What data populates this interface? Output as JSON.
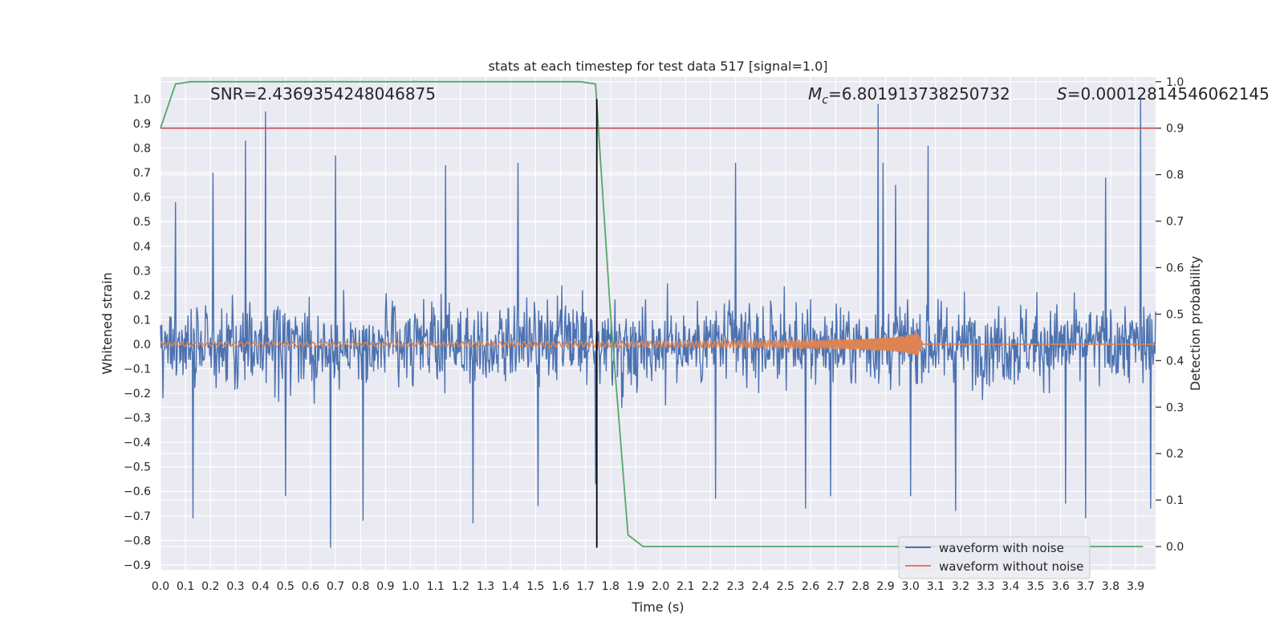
{
  "chart_data": {
    "type": "line",
    "title": "stats at each timestep for test data 517 [signal=1.0]",
    "xlabel": "Time (s)",
    "ylabel_left": "Whitened strain",
    "ylabel_right": "Detection probability",
    "annotations": {
      "snr": "SNR=2.4369354248046875",
      "mc_symbol": "M",
      "mc_subscript": "c",
      "mc_value": "=6.801913738250732",
      "s_symbol": "S",
      "s_value": "=0.00012814546062145"
    },
    "xlim": [
      0.0,
      3.98
    ],
    "ylim_left": [
      -0.92,
      1.09
    ],
    "ylim_right": [
      -0.05,
      1.01
    ],
    "x_ticks": [
      "0.0",
      "0.1",
      "0.2",
      "0.3",
      "0.4",
      "0.5",
      "0.6",
      "0.7",
      "0.8",
      "0.9",
      "1.0",
      "1.1",
      "1.2",
      "1.3",
      "1.4",
      "1.5",
      "1.6",
      "1.7",
      "1.8",
      "1.9",
      "2.0",
      "2.1",
      "2.2",
      "2.3",
      "2.4",
      "2.5",
      "2.6",
      "2.7",
      "2.8",
      "2.9",
      "3.0",
      "3.1",
      "3.2",
      "3.3",
      "3.4",
      "3.5",
      "3.6",
      "3.7",
      "3.8",
      "3.9"
    ],
    "y_ticks_left": [
      "−0.9",
      "−0.8",
      "−0.7",
      "−0.6",
      "−0.5",
      "−0.4",
      "−0.3",
      "−0.2",
      "−0.1",
      "0.0",
      "0.1",
      "0.2",
      "0.3",
      "0.4",
      "0.5",
      "0.6",
      "0.7",
      "0.8",
      "0.9",
      "1.0"
    ],
    "y_ticks_right": [
      "0.0",
      "0.1",
      "0.2",
      "0.3",
      "0.4",
      "0.5",
      "0.6",
      "0.7",
      "0.8",
      "0.9",
      "1.0"
    ],
    "series": [
      {
        "name": "waveform with noise",
        "axis": "left",
        "color": "#4c72b0",
        "peaks": [
          [
            0.01,
            -0.22
          ],
          [
            0.06,
            0.58
          ],
          [
            0.13,
            -0.71
          ],
          [
            0.21,
            0.7
          ],
          [
            0.34,
            0.83
          ],
          [
            0.42,
            0.95
          ],
          [
            0.5,
            -0.62
          ],
          [
            0.68,
            -0.83
          ],
          [
            0.7,
            0.77
          ],
          [
            0.81,
            -0.72
          ],
          [
            1.14,
            0.73
          ],
          [
            1.25,
            -0.73
          ],
          [
            1.43,
            0.74
          ],
          [
            1.51,
            -0.66
          ],
          [
            1.74,
            -0.57
          ],
          [
            2.22,
            -0.63
          ],
          [
            2.3,
            0.74
          ],
          [
            2.58,
            -0.67
          ],
          [
            2.68,
            -0.62
          ],
          [
            2.87,
            0.98
          ],
          [
            2.89,
            0.74
          ],
          [
            2.94,
            0.65
          ],
          [
            3.0,
            -0.62
          ],
          [
            3.07,
            0.81
          ],
          [
            3.18,
            -0.68
          ],
          [
            3.62,
            -0.65
          ],
          [
            3.7,
            -0.71
          ],
          [
            3.78,
            0.68
          ],
          [
            3.92,
            1.0
          ],
          [
            3.96,
            -0.67
          ]
        ]
      },
      {
        "name": "waveform without noise",
        "axis": "left",
        "color": "#dd8452",
        "envelope": [
          [
            0.0,
            0.008
          ],
          [
            1.0,
            0.009
          ],
          [
            2.0,
            0.012
          ],
          [
            2.5,
            0.015
          ],
          [
            2.8,
            0.022
          ],
          [
            2.95,
            0.032
          ],
          [
            3.03,
            0.045
          ],
          [
            3.05,
            0.0
          ]
        ]
      },
      {
        "name": "Detection probability",
        "axis": "right",
        "color": "#55a868",
        "x": [
          0.0,
          0.06,
          0.12,
          0.18,
          0.24,
          0.3,
          0.36,
          0.42,
          0.48,
          0.54,
          0.6,
          0.66,
          0.72,
          0.78,
          0.84,
          0.9,
          0.96,
          1.02,
          1.08,
          1.14,
          1.2,
          1.26,
          1.32,
          1.38,
          1.44,
          1.5,
          1.56,
          1.62,
          1.68,
          1.74,
          1.8,
          1.87,
          1.93,
          2.0,
          2.5,
          3.0,
          3.5,
          3.93
        ],
        "y": [
          0.9,
          0.995,
          1.0,
          1.0,
          1.0,
          1.0,
          1.0,
          1.0,
          1.0,
          1.0,
          1.0,
          1.0,
          1.0,
          1.0,
          1.0,
          1.0,
          1.0,
          1.0,
          1.0,
          1.0,
          1.0,
          1.0,
          1.0,
          1.0,
          1.0,
          1.0,
          1.0,
          1.0,
          1.0,
          0.995,
          0.5,
          0.025,
          0.0,
          0.0,
          0.0,
          0.0,
          0.0,
          0.0
        ]
      }
    ],
    "threshold": {
      "axis": "right",
      "value": 0.9,
      "color": "#c44e52"
    },
    "event_marker": {
      "x": 1.745,
      "y_range": [
        -0.83,
        1.0
      ],
      "color": "#000000"
    },
    "legend": {
      "placement": "lower-right",
      "entries": [
        "waveform with noise",
        "waveform without noise"
      ]
    },
    "grid": true,
    "background": "#eaeaf2"
  }
}
